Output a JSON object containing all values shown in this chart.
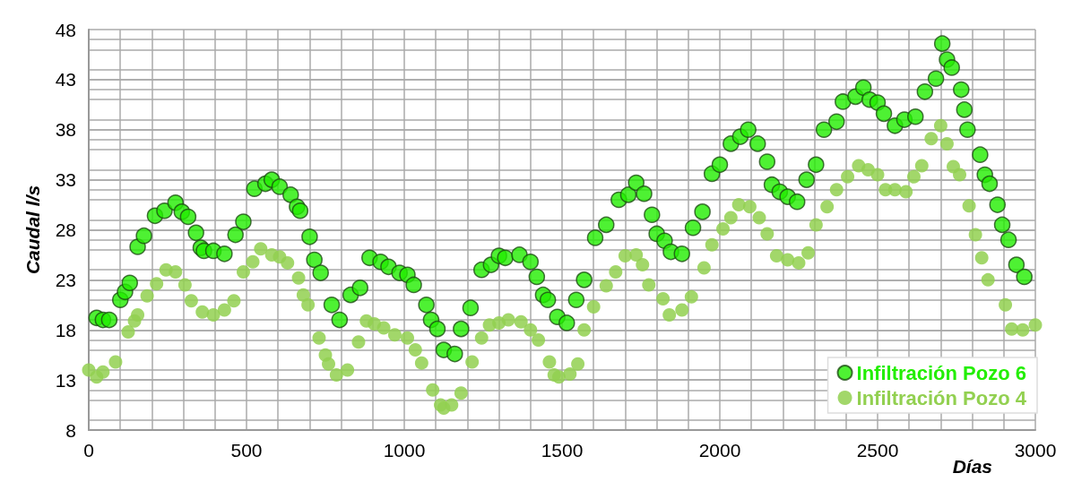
{
  "chart_data": {
    "type": "scatter",
    "xlabel": "Días",
    "ylabel": "Caudal l/s",
    "xlim": [
      0,
      3000
    ],
    "xticks": [
      0,
      500,
      1000,
      1500,
      2000,
      2500,
      3000
    ],
    "ylim": [
      8,
      48
    ],
    "yticks": [
      8,
      13,
      18,
      23,
      28,
      33,
      38,
      43,
      48
    ],
    "grid": true,
    "legend": "bottom right",
    "marker": "circle",
    "series": [
      {
        "name": "Infiltración Pozo 6",
        "color": "#22ee00",
        "x": [
          25,
          45,
          65,
          100,
          115,
          130,
          155,
          175,
          210,
          240,
          275,
          295,
          315,
          340,
          355,
          365,
          395,
          430,
          465,
          490,
          525,
          560,
          580,
          605,
          640,
          660,
          670,
          700,
          715,
          735,
          770,
          795,
          830,
          860,
          890,
          925,
          950,
          985,
          1010,
          1030,
          1070,
          1085,
          1105,
          1125,
          1160,
          1180,
          1210,
          1245,
          1275,
          1300,
          1320,
          1365,
          1400,
          1420,
          1440,
          1455,
          1485,
          1515,
          1545,
          1570,
          1605,
          1640,
          1680,
          1710,
          1735,
          1760,
          1785,
          1800,
          1825,
          1845,
          1880,
          1915,
          1945,
          1975,
          2000,
          2035,
          2065,
          2090,
          2120,
          2150,
          2165,
          2190,
          2215,
          2245,
          2275,
          2305,
          2330,
          2370,
          2390,
          2430,
          2455,
          2475,
          2500,
          2520,
          2555,
          2585,
          2620,
          2650,
          2685,
          2705,
          2720,
          2735,
          2765,
          2775,
          2785,
          2825,
          2840,
          2855,
          2880,
          2895,
          2915,
          2940,
          2965
        ],
        "values": [
          19.2,
          19,
          19,
          21,
          21.8,
          22.7,
          26.3,
          27.4,
          29.4,
          29.9,
          30.7,
          29.8,
          29.3,
          27.7,
          26.2,
          25.9,
          25.9,
          25.6,
          27.5,
          28.8,
          32.1,
          32.6,
          33,
          32.3,
          31.5,
          30.3,
          29.9,
          27.3,
          25,
          23.7,
          20.5,
          19,
          21.5,
          22.2,
          25.2,
          24.8,
          24.3,
          23.7,
          23.5,
          22.5,
          20.5,
          19,
          18.1,
          16,
          15.6,
          18.1,
          20.2,
          24,
          24.5,
          25.4,
          25.2,
          25.5,
          24.8,
          23.3,
          21.5,
          21,
          19.3,
          18.7,
          21,
          23,
          27.2,
          28.5,
          31,
          31.5,
          32.7,
          31.6,
          29.5,
          27.6,
          26.9,
          25.8,
          25.6,
          28.2,
          29.8,
          33.6,
          34.5,
          36.6,
          37.3,
          38,
          36.6,
          34.8,
          32.5,
          31.8,
          31.3,
          30.8,
          33,
          34.5,
          38,
          38.8,
          40.8,
          41.3,
          42.2,
          41,
          40.7,
          39.6,
          38.4,
          39,
          39.3,
          41.8,
          43.1,
          46.6,
          45,
          44.2,
          42,
          40,
          38,
          35.5,
          33.5,
          32.6,
          30.5,
          28.5,
          27,
          24.5,
          23.3
        ]
      },
      {
        "name": "Infiltración Pozo 4",
        "color": "#92d050",
        "x": [
          0,
          25,
          45,
          85,
          125,
          145,
          155,
          185,
          215,
          245,
          275,
          305,
          325,
          360,
          395,
          430,
          460,
          490,
          520,
          545,
          580,
          605,
          630,
          665,
          680,
          695,
          730,
          750,
          760,
          785,
          820,
          855,
          880,
          905,
          935,
          970,
          1010,
          1035,
          1055,
          1090,
          1115,
          1125,
          1150,
          1180,
          1215,
          1245,
          1270,
          1300,
          1330,
          1370,
          1400,
          1425,
          1460,
          1475,
          1490,
          1525,
          1550,
          1570,
          1600,
          1640,
          1670,
          1700,
          1735,
          1755,
          1775,
          1820,
          1840,
          1880,
          1910,
          1950,
          1975,
          2010,
          2035,
          2060,
          2095,
          2125,
          2150,
          2180,
          2215,
          2250,
          2280,
          2305,
          2340,
          2370,
          2405,
          2440,
          2470,
          2500,
          2525,
          2555,
          2590,
          2615,
          2640,
          2670,
          2700,
          2720,
          2740,
          2760,
          2790,
          2810,
          2830,
          2850,
          2905,
          2925,
          2960,
          3000
        ],
        "values": [
          14,
          13.3,
          13.8,
          14.8,
          17.8,
          18.9,
          19.5,
          21.4,
          22.6,
          24,
          23.8,
          22.5,
          20.9,
          19.8,
          19.5,
          20,
          20.9,
          23.8,
          24.8,
          26.1,
          25.5,
          25.3,
          24.7,
          23.2,
          21.5,
          20.5,
          17.2,
          15.5,
          14.6,
          13.5,
          14,
          16.8,
          18.9,
          18.6,
          18.2,
          17.5,
          17.2,
          16,
          14.7,
          12,
          10.5,
          10.2,
          10.5,
          11.7,
          14.8,
          17.2,
          18.5,
          18.7,
          19,
          18.8,
          18,
          17,
          14.8,
          13.5,
          13.3,
          13.6,
          14.6,
          18,
          20.3,
          22.4,
          23.8,
          25.4,
          25.5,
          24.5,
          22.5,
          21.1,
          19.5,
          20,
          21.3,
          24.2,
          26.5,
          28.1,
          29.2,
          30.5,
          30.3,
          29.2,
          27.6,
          25.4,
          25,
          24.7,
          25.7,
          28.5,
          30.3,
          32,
          33.3,
          34.4,
          34,
          33.5,
          32,
          32,
          31.8,
          33.3,
          34.4,
          37.1,
          38.4,
          36.6,
          34.3,
          33.5,
          30.4,
          27.5,
          25.2,
          23,
          20.5,
          18.1,
          18,
          18.5
        ]
      }
    ]
  }
}
